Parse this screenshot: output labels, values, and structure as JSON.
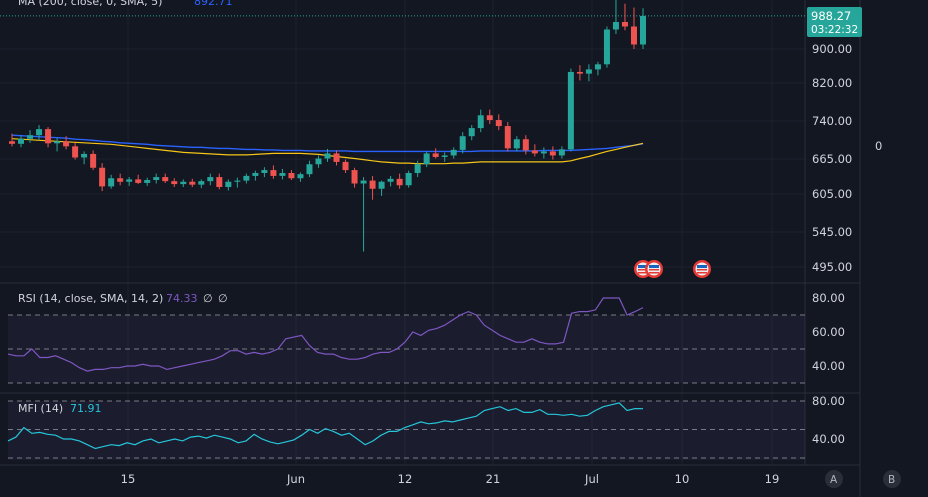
{
  "indicators": {
    "ma_label": "MA (200, close, 0, SMA, 5)",
    "ma_value": "892.71",
    "rsi_label": "RSI (14, close, SMA, 14, 2)",
    "rsi_value": "74.33",
    "rsi_extra1": "∅",
    "rsi_extra2": "∅",
    "mfi_label": "MFI (14)",
    "mfi_value": "71.91"
  },
  "price_tag": {
    "price": "988.27",
    "countdown": "03:22:32"
  },
  "right_panel_value": "0",
  "buttons": {
    "a": "A",
    "b": "B"
  },
  "colors": {
    "background": "#131722",
    "up": "#26a69a",
    "down": "#ef5350",
    "ma_blue": "#2962ff",
    "ma_yellow": "#f5c518",
    "rsi": "#7e57c2",
    "mfi": "#26c6da",
    "grid": "#1e222d"
  },
  "chart_data": [
    {
      "type": "candlestick",
      "y_ticks": [
        "900.00",
        "820.00",
        "740.00",
        "665.00",
        "605.00",
        "545.00",
        "495.00"
      ],
      "x_ticks": [
        "15",
        "Jun",
        "12",
        "21",
        "Jul",
        "10",
        "19"
      ],
      "last_price": 988.27,
      "candles": [
        {
          "o": 700,
          "h": 715,
          "l": 690,
          "c": 695
        },
        {
          "o": 695,
          "h": 712,
          "l": 688,
          "c": 705
        },
        {
          "o": 705,
          "h": 722,
          "l": 697,
          "c": 712
        },
        {
          "o": 712,
          "h": 732,
          "l": 702,
          "c": 724
        },
        {
          "o": 724,
          "h": 728,
          "l": 688,
          "c": 696
        },
        {
          "o": 696,
          "h": 706,
          "l": 680,
          "c": 700
        },
        {
          "o": 700,
          "h": 710,
          "l": 684,
          "c": 690
        },
        {
          "o": 690,
          "h": 697,
          "l": 664,
          "c": 668
        },
        {
          "o": 668,
          "h": 680,
          "l": 656,
          "c": 675
        },
        {
          "o": 675,
          "h": 682,
          "l": 646,
          "c": 650
        },
        {
          "o": 650,
          "h": 658,
          "l": 610,
          "c": 618
        },
        {
          "o": 618,
          "h": 638,
          "l": 614,
          "c": 632
        },
        {
          "o": 632,
          "h": 640,
          "l": 620,
          "c": 626
        },
        {
          "o": 626,
          "h": 634,
          "l": 619,
          "c": 630
        },
        {
          "o": 630,
          "h": 638,
          "l": 622,
          "c": 624
        },
        {
          "o": 624,
          "h": 633,
          "l": 619,
          "c": 629
        },
        {
          "o": 629,
          "h": 640,
          "l": 623,
          "c": 634
        },
        {
          "o": 634,
          "h": 640,
          "l": 624,
          "c": 627
        },
        {
          "o": 627,
          "h": 632,
          "l": 617,
          "c": 622
        },
        {
          "o": 622,
          "h": 630,
          "l": 617,
          "c": 626
        },
        {
          "o": 626,
          "h": 631,
          "l": 617,
          "c": 621
        },
        {
          "o": 621,
          "h": 630,
          "l": 615,
          "c": 627
        },
        {
          "o": 627,
          "h": 640,
          "l": 620,
          "c": 634
        },
        {
          "o": 634,
          "h": 640,
          "l": 613,
          "c": 617
        },
        {
          "o": 617,
          "h": 630,
          "l": 611,
          "c": 626
        },
        {
          "o": 626,
          "h": 633,
          "l": 616,
          "c": 628
        },
        {
          "o": 628,
          "h": 640,
          "l": 623,
          "c": 636
        },
        {
          "o": 636,
          "h": 645,
          "l": 628,
          "c": 641
        },
        {
          "o": 641,
          "h": 651,
          "l": 634,
          "c": 646
        },
        {
          "o": 646,
          "h": 654,
          "l": 631,
          "c": 636
        },
        {
          "o": 636,
          "h": 648,
          "l": 630,
          "c": 641
        },
        {
          "o": 641,
          "h": 646,
          "l": 629,
          "c": 632
        },
        {
          "o": 632,
          "h": 642,
          "l": 626,
          "c": 639
        },
        {
          "o": 639,
          "h": 662,
          "l": 634,
          "c": 656
        },
        {
          "o": 656,
          "h": 672,
          "l": 650,
          "c": 666
        },
        {
          "o": 666,
          "h": 685,
          "l": 660,
          "c": 676
        },
        {
          "o": 676,
          "h": 682,
          "l": 654,
          "c": 660
        },
        {
          "o": 660,
          "h": 664,
          "l": 641,
          "c": 646
        },
        {
          "o": 646,
          "h": 650,
          "l": 616,
          "c": 623
        },
        {
          "o": 623,
          "h": 634,
          "l": 517,
          "c": 628
        },
        {
          "o": 628,
          "h": 636,
          "l": 596,
          "c": 614
        },
        {
          "o": 614,
          "h": 628,
          "l": 602,
          "c": 626
        },
        {
          "o": 626,
          "h": 636,
          "l": 618,
          "c": 631
        },
        {
          "o": 631,
          "h": 640,
          "l": 614,
          "c": 620
        },
        {
          "o": 620,
          "h": 645,
          "l": 616,
          "c": 641
        },
        {
          "o": 641,
          "h": 662,
          "l": 634,
          "c": 656
        },
        {
          "o": 656,
          "h": 680,
          "l": 651,
          "c": 676
        },
        {
          "o": 676,
          "h": 686,
          "l": 666,
          "c": 669
        },
        {
          "o": 669,
          "h": 678,
          "l": 660,
          "c": 672
        },
        {
          "o": 672,
          "h": 688,
          "l": 666,
          "c": 683
        },
        {
          "o": 683,
          "h": 718,
          "l": 676,
          "c": 710
        },
        {
          "o": 710,
          "h": 732,
          "l": 702,
          "c": 726
        },
        {
          "o": 726,
          "h": 764,
          "l": 718,
          "c": 752
        },
        {
          "o": 752,
          "h": 764,
          "l": 734,
          "c": 742
        },
        {
          "o": 742,
          "h": 754,
          "l": 722,
          "c": 730
        },
        {
          "o": 730,
          "h": 738,
          "l": 680,
          "c": 686
        },
        {
          "o": 686,
          "h": 710,
          "l": 680,
          "c": 704
        },
        {
          "o": 704,
          "h": 712,
          "l": 674,
          "c": 682
        },
        {
          "o": 682,
          "h": 694,
          "l": 670,
          "c": 676
        },
        {
          "o": 676,
          "h": 688,
          "l": 666,
          "c": 680
        },
        {
          "o": 680,
          "h": 690,
          "l": 664,
          "c": 672
        },
        {
          "o": 672,
          "h": 690,
          "l": 666,
          "c": 684
        },
        {
          "o": 684,
          "h": 854,
          "l": 680,
          "c": 846
        },
        {
          "o": 846,
          "h": 862,
          "l": 826,
          "c": 842
        },
        {
          "o": 842,
          "h": 864,
          "l": 824,
          "c": 852
        },
        {
          "o": 852,
          "h": 870,
          "l": 838,
          "c": 864
        },
        {
          "o": 864,
          "h": 960,
          "l": 856,
          "c": 952
        },
        {
          "o": 952,
          "h": 1040,
          "l": 940,
          "c": 972
        },
        {
          "o": 972,
          "h": 1020,
          "l": 950,
          "c": 960
        },
        {
          "o": 960,
          "h": 1010,
          "l": 900,
          "c": 912
        },
        {
          "o": 912,
          "h": 1008,
          "l": 900,
          "c": 988.27
        }
      ],
      "ma_blue": [
        712,
        711,
        710,
        709,
        708,
        707,
        706,
        704,
        703,
        702,
        700,
        699,
        697,
        696,
        695,
        694,
        692,
        691,
        690,
        689,
        688,
        688,
        687,
        686,
        686,
        685,
        684,
        684,
        683,
        683,
        682,
        682,
        682,
        681,
        681,
        681,
        681,
        681,
        680,
        680,
        680,
        680,
        680,
        680,
        680,
        680,
        680,
        680,
        680,
        680,
        680,
        680,
        681,
        681,
        681,
        681,
        681,
        681,
        681,
        682,
        682,
        682,
        682,
        683,
        684,
        685,
        686,
        688,
        690,
        692,
        695
      ],
      "ma_yellow": [
        705,
        704,
        703,
        702,
        701,
        700,
        699,
        698,
        697,
        696,
        695,
        694,
        692,
        690,
        688,
        686,
        684,
        682,
        680,
        678,
        677,
        676,
        675,
        674,
        673,
        673,
        673,
        674,
        675,
        676,
        676,
        676,
        676,
        675,
        674,
        672,
        670,
        668,
        666,
        664,
        662,
        660,
        659,
        658,
        658,
        657,
        657,
        657,
        657,
        658,
        658,
        659,
        660,
        660,
        660,
        660,
        660,
        660,
        660,
        660,
        660,
        660,
        662,
        666,
        670,
        675,
        680,
        684,
        688,
        692,
        696
      ]
    },
    {
      "type": "line",
      "name": "RSI",
      "y_ticks": [
        "80.00",
        "60.00",
        "40.00"
      ],
      "levels": [
        70,
        50,
        30
      ],
      "values": [
        47,
        46,
        46,
        50,
        45,
        45,
        46,
        44,
        42,
        39,
        37,
        38,
        38,
        39,
        39,
        40,
        40,
        41,
        40,
        40,
        38,
        39,
        40,
        41,
        42,
        43,
        44,
        46,
        49,
        49,
        47,
        48,
        47,
        48,
        50,
        56,
        57,
        58,
        52,
        48,
        47,
        47,
        45,
        44,
        44,
        45,
        47,
        48,
        48,
        50,
        54,
        60,
        58,
        61,
        62,
        64,
        67,
        70,
        72,
        70,
        64,
        61,
        58,
        56,
        54,
        54,
        56,
        54,
        53,
        53,
        54,
        71,
        72,
        72,
        73,
        80,
        80,
        80,
        70,
        72,
        74.33
      ]
    },
    {
      "type": "line",
      "name": "MFI",
      "y_ticks": [
        "80.00",
        "40.00"
      ],
      "levels": [
        80,
        50,
        20
      ],
      "values": [
        38,
        42,
        52,
        46,
        47,
        45,
        44,
        40,
        40,
        38,
        34,
        30,
        32,
        34,
        33,
        36,
        34,
        38,
        40,
        36,
        38,
        40,
        38,
        42,
        43,
        41,
        44,
        42,
        40,
        36,
        38,
        45,
        40,
        37,
        35,
        37,
        39,
        44,
        50,
        46,
        51,
        48,
        44,
        46,
        40,
        34,
        38,
        44,
        48,
        48,
        52,
        55,
        58,
        56,
        57,
        59,
        58,
        60,
        62,
        64,
        70,
        72,
        74,
        70,
        72,
        68,
        68,
        71,
        66,
        66,
        65,
        66,
        64,
        65,
        70,
        74,
        76,
        78,
        70,
        72,
        71.91
      ]
    }
  ]
}
